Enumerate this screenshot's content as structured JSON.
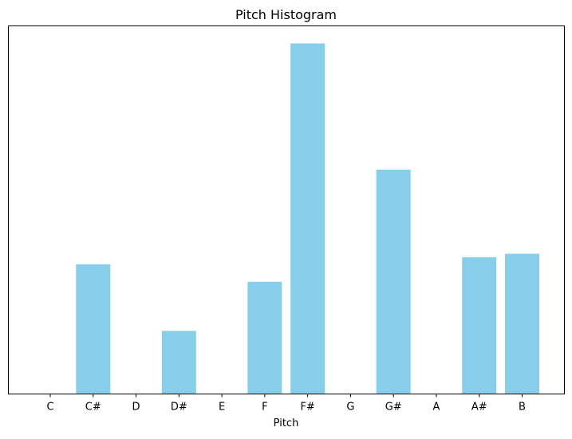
{
  "chart_data": {
    "type": "bar",
    "title": "Pitch Histogram",
    "xlabel": "Pitch",
    "ylabel": "",
    "categories": [
      "C",
      "C#",
      "D",
      "D#",
      "E",
      "F",
      "F#",
      "G",
      "G#",
      "A",
      "A#",
      "B"
    ],
    "values": [
      0,
      0.37,
      0,
      0.18,
      0,
      0.32,
      1.0,
      0,
      0.64,
      0,
      0.39,
      0.4
    ],
    "ylim": [
      0,
      1.05
    ],
    "y_axis_visible": false,
    "grid": false,
    "legend": "none",
    "bar_color": "#87ceeb"
  }
}
